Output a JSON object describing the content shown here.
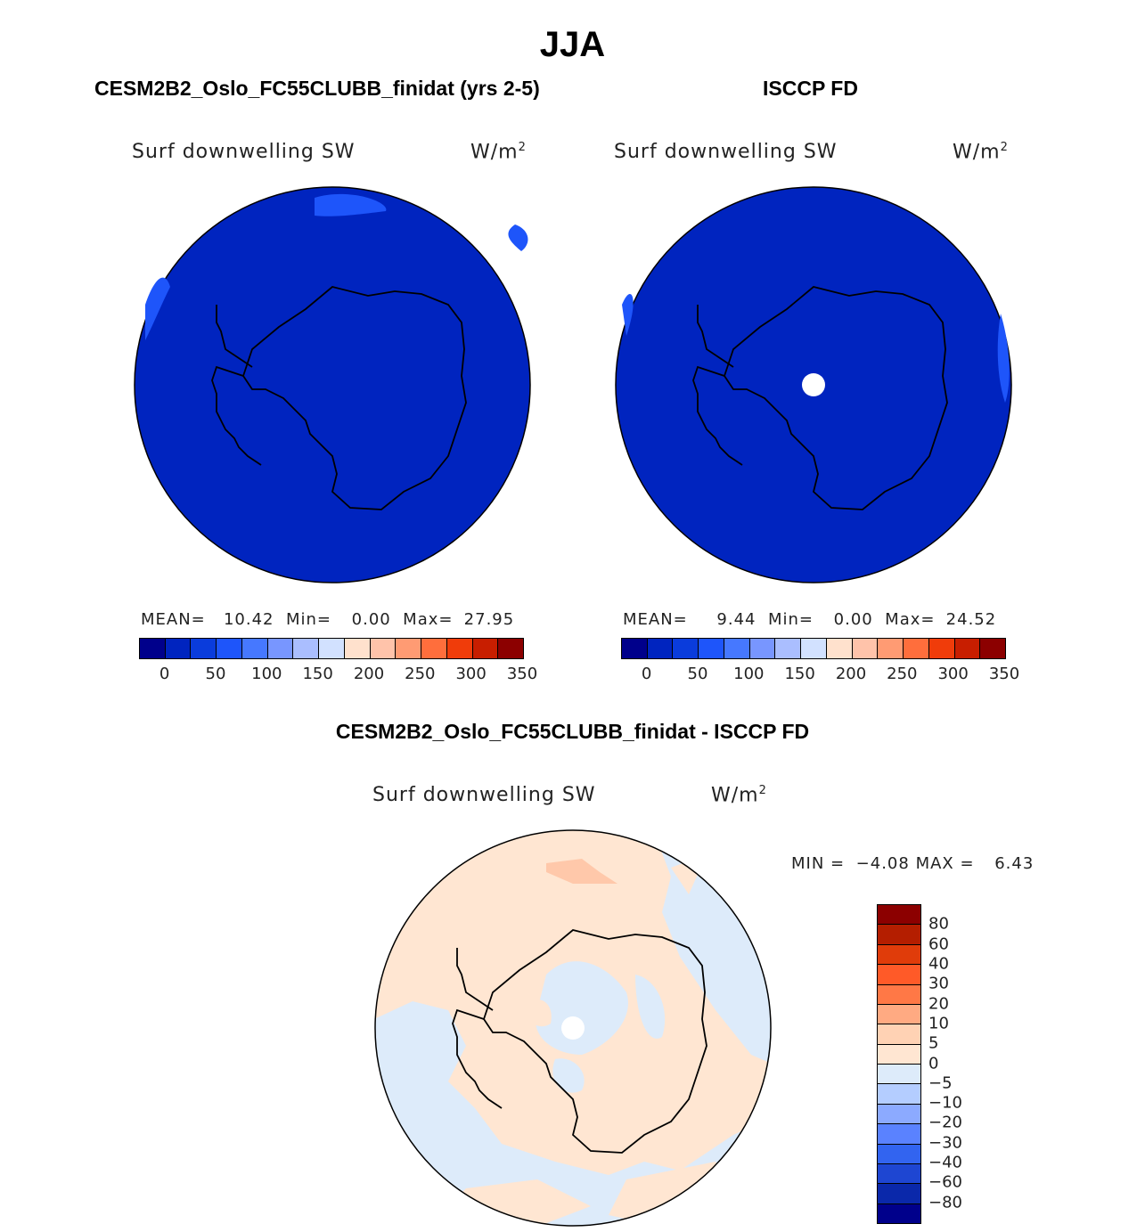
{
  "season": "JJA",
  "panels": [
    {
      "title": "CESM2B2_Oslo_FC55CLUBB_finidat (yrs 2-5)",
      "variable": "Surf downwelling SW",
      "units": "W/m",
      "units_sup": "2",
      "stats": {
        "mean_label": "MEAN=",
        "mean": "10.42",
        "min_label": "Min=",
        "min": "0.00",
        "max_label": "Max=",
        "max": "27.95"
      },
      "colorbar_ticks": [
        "0",
        "50",
        "100",
        "150",
        "200",
        "250",
        "300",
        "350"
      ],
      "dominant_color": "#0024BF",
      "missing_pole": false
    },
    {
      "title": "ISCCP FD",
      "variable": "Surf downwelling SW",
      "units": "W/m",
      "units_sup": "2",
      "stats": {
        "mean_label": "MEAN=",
        "mean": "9.44",
        "min_label": "Min=",
        "min": "0.00",
        "max_label": "Max=",
        "max": "24.52"
      },
      "colorbar_ticks": [
        "0",
        "50",
        "100",
        "150",
        "200",
        "250",
        "300",
        "350"
      ],
      "dominant_color": "#0024BF",
      "missing_pole": true
    }
  ],
  "diff_panel": {
    "title": "CESM2B2_Oslo_FC55CLUBB_finidat - ISCCP FD",
    "variable": "Surf downwelling SW",
    "units": "W/m",
    "units_sup": "2",
    "min_label": "MIN =",
    "min": "−4.08",
    "max_label": "MAX =",
    "max": "6.43",
    "colorbar_ticks": [
      "80",
      "60",
      "40",
      "30",
      "20",
      "10",
      "5",
      "0",
      "−5",
      "−10",
      "−20",
      "−30",
      "−40",
      "−60",
      "−80"
    ],
    "missing_pole": true
  },
  "colors": {
    "abs_scale": [
      "#00008B",
      "#0024BF",
      "#0A3CDC",
      "#1E55FA",
      "#4678FF",
      "#7896FF",
      "#AABEFF",
      "#D2E1FF",
      "#FFE1CD",
      "#FFC3AA",
      "#FF9B73",
      "#FF6E3C",
      "#F03C0A",
      "#C81E00",
      "#8C0000"
    ],
    "diff_scale_top_to_bottom": [
      "#8C0000",
      "#B41E00",
      "#E03C0A",
      "#FF5A28",
      "#FF7846",
      "#FFAA82",
      "#FFD2B4",
      "#FFE6D2",
      "#DDEBFA",
      "#B4CDFF",
      "#8CAAFF",
      "#5A82FF",
      "#3264F0",
      "#1E46D2",
      "#0A28AA",
      "#00008B"
    ],
    "ocean_blue": "#0024BF",
    "diff_positive": "#FFE6D2",
    "diff_negative": "#DDEBFA",
    "diff_patch": "#FFC8AA"
  }
}
